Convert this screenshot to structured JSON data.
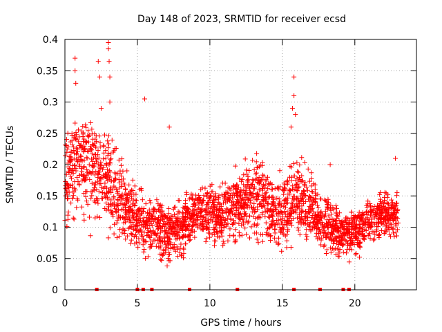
{
  "chart_data": {
    "type": "scatter",
    "title": "Day 148 of 2023, SRMTID for receiver ecsd",
    "xlabel": "GPS time / hours",
    "ylabel": "SRMTID / TECUs",
    "xlim": [
      0,
      24.25
    ],
    "ylim": [
      0,
      0.4
    ],
    "x_ticks": [
      0,
      5,
      10,
      15,
      20
    ],
    "x_tick_labels": [
      "0",
      "5",
      "10",
      "15",
      "20"
    ],
    "y_ticks": [
      0,
      0.05,
      0.1,
      0.15,
      0.2,
      0.25,
      0.3,
      0.35,
      0.4
    ],
    "y_tick_labels": [
      "0",
      "0.05",
      "0.1",
      "0.15",
      "0.2",
      "0.25",
      "0.3",
      "0.35",
      "0.4"
    ],
    "grid": true,
    "marker": "+",
    "marker_color": "#ff0000",
    "series_color_note": "red",
    "hourly_envelope": {
      "hours": [
        0,
        1,
        2,
        3,
        4,
        5,
        6,
        7,
        8,
        9,
        10,
        11,
        12,
        13,
        14,
        15,
        16,
        17,
        18,
        19,
        20,
        21,
        22,
        23
      ],
      "typical": [
        0.17,
        0.2,
        0.19,
        0.17,
        0.14,
        0.11,
        0.1,
        0.09,
        0.1,
        0.12,
        0.12,
        0.12,
        0.14,
        0.15,
        0.13,
        0.12,
        0.15,
        0.13,
        0.1,
        0.09,
        0.09,
        0.11,
        0.12,
        0.12
      ],
      "spread": [
        0.06,
        0.07,
        0.07,
        0.07,
        0.05,
        0.04,
        0.04,
        0.04,
        0.04,
        0.04,
        0.04,
        0.04,
        0.05,
        0.05,
        0.05,
        0.05,
        0.06,
        0.05,
        0.04,
        0.03,
        0.03,
        0.03,
        0.03,
        0.03
      ]
    },
    "outliers": [
      {
        "x": 0.7,
        "y": 0.37
      },
      {
        "x": 0.7,
        "y": 0.35
      },
      {
        "x": 0.75,
        "y": 0.33
      },
      {
        "x": 2.3,
        "y": 0.365
      },
      {
        "x": 2.4,
        "y": 0.34
      },
      {
        "x": 2.5,
        "y": 0.29
      },
      {
        "x": 3.0,
        "y": 0.395
      },
      {
        "x": 3.0,
        "y": 0.385
      },
      {
        "x": 3.05,
        "y": 0.365
      },
      {
        "x": 3.1,
        "y": 0.34
      },
      {
        "x": 3.1,
        "y": 0.3
      },
      {
        "x": 5.5,
        "y": 0.305
      },
      {
        "x": 7.2,
        "y": 0.26
      },
      {
        "x": 15.8,
        "y": 0.34
      },
      {
        "x": 15.8,
        "y": 0.31
      },
      {
        "x": 15.7,
        "y": 0.29
      },
      {
        "x": 15.9,
        "y": 0.28
      },
      {
        "x": 15.6,
        "y": 0.26
      },
      {
        "x": 18.3,
        "y": 0.2
      },
      {
        "x": 22.8,
        "y": 0.21
      }
    ],
    "zero_markers_x": [
      2.2,
      5.0,
      5.4,
      6.0,
      8.6,
      11.9,
      15.8,
      17.6,
      19.2,
      19.6
    ]
  }
}
